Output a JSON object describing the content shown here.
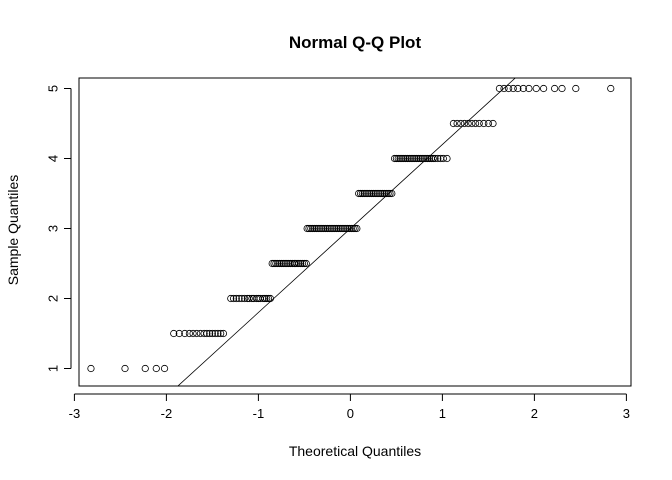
{
  "chart_data": {
    "type": "scatter",
    "title": "Normal Q-Q Plot",
    "xlabel": "Theoretical Quantiles",
    "ylabel": "Sample Quantiles",
    "xlim": [
      -2.95,
      3.05
    ],
    "ylim": [
      0.75,
      5.15
    ],
    "x_ticks": [
      -3,
      -2,
      -1,
      0,
      1,
      2,
      3
    ],
    "y_ticks": [
      1,
      2,
      3,
      4,
      5
    ],
    "grid": false,
    "reference_line": {
      "intercept": 3.0,
      "slope": 1.2
    },
    "groups": [
      {
        "y": 1.0,
        "x": [
          -2.82,
          -2.45,
          -2.23,
          -2.11,
          -2.02
        ]
      },
      {
        "y": 1.5,
        "x": [
          -1.92,
          -1.86,
          -1.8,
          -1.75,
          -1.71,
          -1.67,
          -1.63,
          -1.59,
          -1.56,
          -1.53,
          -1.5,
          -1.47,
          -1.44,
          -1.41,
          -1.38
        ]
      },
      {
        "y": 2.0,
        "x": [
          -1.3,
          -1.27,
          -1.24,
          -1.21,
          -1.18,
          -1.15,
          -1.12,
          -1.1,
          -1.07,
          -1.05,
          -1.02,
          -1.0,
          -0.98,
          -0.95,
          -0.93,
          -0.91,
          -0.89,
          -0.87
        ]
      },
      {
        "y": 2.5,
        "x": [
          -0.85,
          -0.83,
          -0.81,
          -0.79,
          -0.77,
          -0.75,
          -0.73,
          -0.71,
          -0.69,
          -0.67,
          -0.65,
          -0.63,
          -0.61,
          -0.6,
          -0.58,
          -0.56,
          -0.54,
          -0.52,
          -0.5,
          -0.48
        ]
      },
      {
        "y": 3.0,
        "x": [
          -0.47,
          -0.45,
          -0.43,
          -0.41,
          -0.39,
          -0.37,
          -0.35,
          -0.33,
          -0.31,
          -0.29,
          -0.27,
          -0.25,
          -0.23,
          -0.21,
          -0.19,
          -0.17,
          -0.15,
          -0.13,
          -0.11,
          -0.09,
          -0.07,
          -0.05,
          -0.03,
          -0.01,
          0.01,
          0.03,
          0.05,
          0.07
        ]
      },
      {
        "y": 3.5,
        "x": [
          0.09,
          0.11,
          0.13,
          0.15,
          0.17,
          0.19,
          0.21,
          0.23,
          0.25,
          0.27,
          0.29,
          0.31,
          0.33,
          0.35,
          0.37,
          0.39,
          0.41,
          0.43,
          0.45
        ]
      },
      {
        "y": 4.0,
        "x": [
          0.48,
          0.5,
          0.52,
          0.54,
          0.56,
          0.58,
          0.6,
          0.62,
          0.64,
          0.66,
          0.68,
          0.7,
          0.72,
          0.74,
          0.76,
          0.78,
          0.8,
          0.82,
          0.84,
          0.86,
          0.88,
          0.9,
          0.92,
          0.95,
          0.98,
          1.01,
          1.05
        ]
      },
      {
        "y": 4.5,
        "x": [
          1.12,
          1.16,
          1.2,
          1.24,
          1.28,
          1.32,
          1.36,
          1.4,
          1.45,
          1.5,
          1.55
        ]
      },
      {
        "y": 5.0,
        "x": [
          1.62,
          1.67,
          1.72,
          1.77,
          1.82,
          1.88,
          1.94,
          2.02,
          2.1,
          2.22,
          2.3,
          2.45,
          2.83
        ]
      }
    ]
  }
}
